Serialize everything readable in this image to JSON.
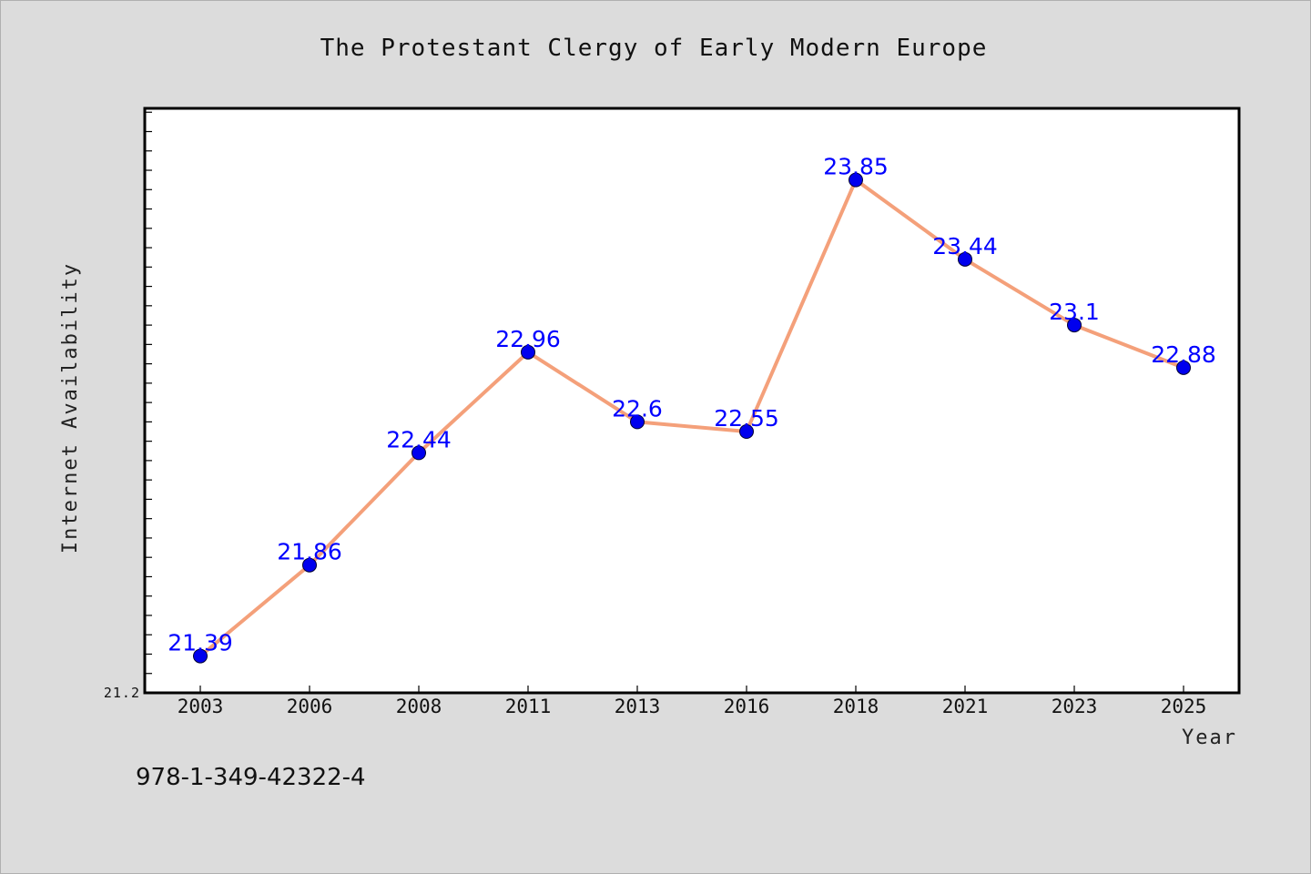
{
  "chart_data": {
    "type": "line",
    "title": "The Protestant Clergy of Early Modern Europe",
    "xlabel": "Year",
    "ylabel": "Internet Availability",
    "categories": [
      "2003",
      "2006",
      "2008",
      "2011",
      "2013",
      "2016",
      "2018",
      "2021",
      "2023",
      "2025"
    ],
    "series": [
      {
        "values": [
          21.39,
          21.86,
          22.44,
          22.96,
          22.6,
          22.55,
          23.85,
          23.44,
          23.1,
          22.88
        ],
        "labels": [
          "21.39",
          "21.86",
          "22.44",
          "22.96",
          "22.6",
          "22.55",
          "23.85",
          "23.44",
          "23.1",
          "22.88"
        ],
        "line_color": "#f4a07a",
        "marker_color": "#0000ee"
      }
    ],
    "y_tick_label": "21.2",
    "ylim": [
      21.2,
      24.22
    ],
    "y_minor_tick_step": 0.1,
    "grid": false,
    "legend": "none"
  },
  "footer": {
    "text": "978-1-349-42322-4"
  },
  "colors": {
    "background": "#dcdcdc",
    "plot_background": "#ffffff",
    "data_label": "#0000ff"
  }
}
